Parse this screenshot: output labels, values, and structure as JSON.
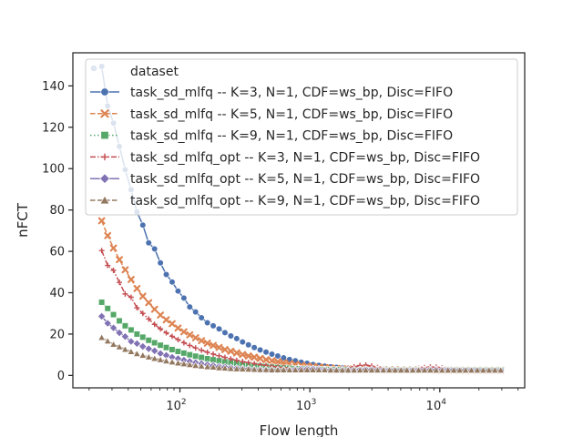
{
  "chart_data": {
    "type": "line",
    "xscale": "log",
    "xlabel": "Flow length",
    "ylabel": "nFCT",
    "xlim": [
      15,
      45000
    ],
    "ylim": [
      -6,
      156
    ],
    "yticks": [
      0,
      20,
      40,
      60,
      80,
      100,
      120,
      140
    ],
    "xticks": [
      {
        "value": 100,
        "base": "10",
        "exp": "2"
      },
      {
        "value": 1000,
        "base": "10",
        "exp": "3"
      },
      {
        "value": 10000,
        "base": "10",
        "exp": "4"
      }
    ],
    "grid": false,
    "legend": {
      "placement": "top-right",
      "title": "dataset"
    },
    "x": [
      25.0,
      27.8,
      30.8,
      34.2,
      37.9,
      42.1,
      46.7,
      51.8,
      57.5,
      63.8,
      70.8,
      78.5,
      87.1,
      96.7,
      107.3,
      119.0,
      132.0,
      146.5,
      162.6,
      180.4,
      200.1,
      222.1,
      246.4,
      273.4,
      303.4,
      336.6,
      373.5,
      414.4,
      459.9,
      510.3,
      566.2,
      628.3,
      697.1,
      773.5,
      858.3,
      952.4,
      1056.8,
      1172.6,
      1301.1,
      1443.7,
      1601.9,
      1777.4,
      1972.2,
      2188.3,
      2428.1,
      2694.2,
      2989.5,
      3317.1,
      3680.6,
      4083.9,
      4531.5,
      5028.1,
      5579.1,
      6190.5,
      6868.8,
      7621.6,
      8456.8,
      9383.6,
      10411.9,
      11552.9,
      12818.9,
      14223.7,
      15782.4,
      17512.0,
      19431.0,
      21560.4,
      23923.1,
      26544.8,
      29453.8
    ],
    "series": [
      {
        "name": "task_sd_mlfq -- K=3, N=1, CDF=ws_bp, Disc=FIFO",
        "color": "#4c72b0",
        "marker": "circle",
        "dash": "solid",
        "values": [
          149.4,
          130.3,
          122.0,
          110.7,
          99.5,
          89.8,
          79.0,
          72.7,
          64.1,
          61.2,
          54.4,
          48.8,
          45.2,
          40.8,
          37.4,
          33.1,
          30.7,
          27.9,
          25.5,
          24.0,
          22.5,
          20.7,
          19.1,
          17.8,
          16.2,
          14.8,
          13.5,
          12.3,
          11.3,
          10.3,
          9.4,
          8.5,
          7.7,
          7.1,
          6.4,
          5.9,
          5.3,
          4.9,
          4.5,
          4.2,
          3.9,
          3.6,
          3.4,
          3.2,
          3.1,
          3.0,
          2.9,
          2.8,
          2.8,
          2.7,
          2.7,
          2.6,
          2.6,
          2.6,
          2.6,
          2.6,
          2.5,
          2.5,
          2.5,
          2.5,
          2.5,
          2.5,
          2.5,
          2.5,
          2.5,
          2.5,
          2.5,
          2.5,
          2.5
        ]
      },
      {
        "name": "task_sd_mlfq -- K=5, N=1, CDF=ws_bp, Disc=FIFO",
        "color": "#dd8452",
        "marker": "x",
        "dash": "dashed",
        "values": [
          74.8,
          67.6,
          61.6,
          56.0,
          51.1,
          46.4,
          42.0,
          38.3,
          35.2,
          32.0,
          29.2,
          26.9,
          25.0,
          22.9,
          21.1,
          19.6,
          18.2,
          16.8,
          15.6,
          14.5,
          13.5,
          12.5,
          11.7,
          10.9,
          10.1,
          9.4,
          8.8,
          8.2,
          7.6,
          7.1,
          6.6,
          6.1,
          5.7,
          5.3,
          4.9,
          4.6,
          4.3,
          4.0,
          3.8,
          3.6,
          3.4,
          3.2,
          3.1,
          3.0,
          2.9,
          2.9,
          2.8,
          2.8,
          2.7,
          2.7,
          2.7,
          2.6,
          2.6,
          2.6,
          2.6,
          2.6,
          2.6,
          2.5,
          2.5,
          2.5,
          2.5,
          2.5,
          2.5,
          2.5,
          2.5,
          2.5,
          2.5,
          2.5,
          2.5
        ]
      },
      {
        "name": "task_sd_mlfq -- K=9, N=1, CDF=ws_bp, Disc=FIFO",
        "color": "#55a868",
        "marker": "square",
        "dash": "dotted",
        "values": [
          35.4,
          32.4,
          29.4,
          26.4,
          24.0,
          22.0,
          20.0,
          18.5,
          17.0,
          15.8,
          14.6,
          13.5,
          12.5,
          11.6,
          10.8,
          10.0,
          9.3,
          8.7,
          8.1,
          7.6,
          7.1,
          6.6,
          6.2,
          5.8,
          5.4,
          5.1,
          4.8,
          4.5,
          4.3,
          4.0,
          3.8,
          3.6,
          3.5,
          3.3,
          3.2,
          3.1,
          3.0,
          2.9,
          2.9,
          2.8,
          2.8,
          2.7,
          2.7,
          2.7,
          2.6,
          2.6,
          2.6,
          2.6,
          2.6,
          2.6,
          2.5,
          2.5,
          2.5,
          2.5,
          2.5,
          2.5,
          2.5,
          2.5,
          2.5,
          2.5,
          2.5,
          2.5,
          2.5,
          2.5,
          2.5,
          2.5,
          2.5,
          2.5,
          2.5
        ]
      },
      {
        "name": "task_sd_mlfq_opt -- K=3, N=1, CDF=ws_bp, Disc=FIFO",
        "color": "#c44e52",
        "marker": "plus",
        "dash": "dashdot",
        "values": [
          60.4,
          53.2,
          50.8,
          45.0,
          39.4,
          37.8,
          32.7,
          30.0,
          27.3,
          24.7,
          22.5,
          20.6,
          18.9,
          17.3,
          15.8,
          14.5,
          13.3,
          12.2,
          11.2,
          10.3,
          9.5,
          8.7,
          8.0,
          7.3,
          6.7,
          6.2,
          5.7,
          5.2,
          4.8,
          4.4,
          4.1,
          3.8,
          3.5,
          3.3,
          3.1,
          2.9,
          2.8,
          2.7,
          2.6,
          2.6,
          2.6,
          2.8,
          3.5,
          4.2,
          4.8,
          5.0,
          4.5,
          3.8,
          3.2,
          2.9,
          2.7,
          2.6,
          2.7,
          3.0,
          3.4,
          3.8,
          4.1,
          4.0,
          3.6,
          3.2,
          2.9,
          2.7,
          2.6,
          2.6,
          2.6,
          2.5,
          2.5,
          2.5,
          2.5
        ]
      },
      {
        "name": "task_sd_mlfq_opt -- K=5, N=1, CDF=ws_bp, Disc=FIFO",
        "color": "#8172b3",
        "marker": "diamond",
        "dash": "solid",
        "values": [
          28.6,
          25.2,
          23.0,
          20.6,
          18.8,
          16.4,
          15.4,
          14.0,
          12.9,
          11.9,
          10.6,
          9.7,
          8.8,
          8.1,
          7.4,
          6.8,
          6.2,
          5.7,
          5.2,
          4.8,
          4.4,
          4.1,
          3.8,
          3.5,
          3.3,
          3.1,
          2.9,
          2.8,
          2.7,
          2.6,
          2.6,
          2.6,
          2.7,
          2.9,
          3.1,
          3.2,
          3.2,
          3.0,
          2.8,
          2.7,
          2.6,
          2.6,
          2.6,
          2.7,
          2.8,
          2.9,
          2.9,
          2.8,
          2.7,
          2.7,
          2.6,
          2.6,
          2.6,
          2.7,
          2.7,
          2.8,
          2.8,
          2.8,
          2.7,
          2.7,
          2.6,
          2.6,
          2.6,
          2.6,
          2.5,
          2.5,
          2.5,
          2.5,
          2.5
        ]
      },
      {
        "name": "task_sd_mlfq_opt -- K=9, N=1, CDF=ws_bp, Disc=FIFO",
        "color": "#937860",
        "marker": "triangle",
        "dash": "dashed",
        "values": [
          18.3,
          16.6,
          15.0,
          13.8,
          12.6,
          11.5,
          10.5,
          9.7,
          8.9,
          8.2,
          7.6,
          7.0,
          6.5,
          6.0,
          5.6,
          5.2,
          4.8,
          4.5,
          4.2,
          4.0,
          3.7,
          3.5,
          3.3,
          3.2,
          3.1,
          3.0,
          2.9,
          2.8,
          2.8,
          2.7,
          2.7,
          2.7,
          2.7,
          2.7,
          2.7,
          2.7,
          2.7,
          2.7,
          2.7,
          2.6,
          2.6,
          2.6,
          2.6,
          2.6,
          2.6,
          2.6,
          2.6,
          2.6,
          2.6,
          2.6,
          2.6,
          2.6,
          2.6,
          2.6,
          2.6,
          2.6,
          2.6,
          2.5,
          2.5,
          2.5,
          2.5,
          2.5,
          2.5,
          2.5,
          2.5,
          2.5,
          2.5,
          2.5,
          2.5
        ]
      }
    ]
  }
}
